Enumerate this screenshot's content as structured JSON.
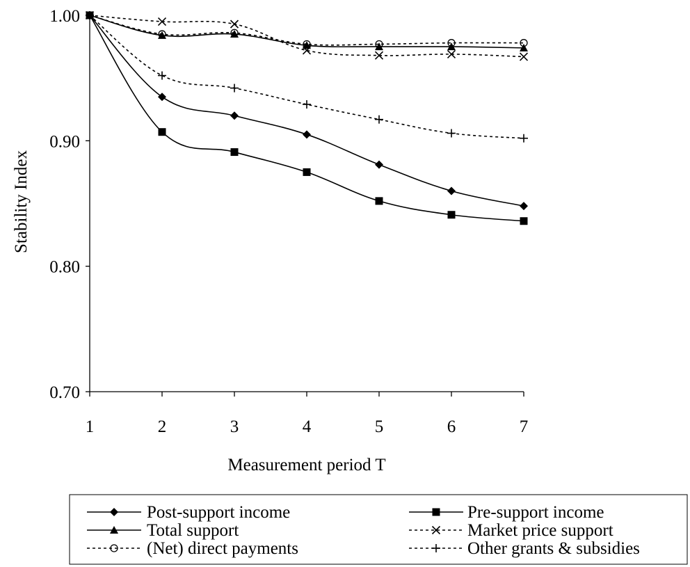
{
  "chart_data": {
    "type": "line",
    "title": "",
    "xlabel": "Measurement period T",
    "ylabel": "Stability Index",
    "x": [
      1,
      2,
      3,
      4,
      5,
      6,
      7
    ],
    "xlim": [
      1,
      7
    ],
    "ylim": [
      0.7,
      1.0
    ],
    "yticks": [
      "0.70",
      "0.80",
      "0.90",
      "1.00"
    ],
    "xticks": [
      "1",
      "2",
      "3",
      "4",
      "5",
      "6",
      "7"
    ],
    "grid": false,
    "legend_position": "bottom",
    "series": [
      {
        "name": "Post-support income",
        "values": [
          1.0,
          0.935,
          0.92,
          0.905,
          0.881,
          0.86,
          0.848
        ],
        "marker": "diamond",
        "dash": "solid",
        "smooth": true
      },
      {
        "name": "Pre-support income",
        "values": [
          1.0,
          0.907,
          0.891,
          0.875,
          0.852,
          0.841,
          0.836
        ],
        "marker": "square",
        "dash": "solid",
        "smooth": true
      },
      {
        "name": "Total support",
        "values": [
          1.0,
          0.984,
          0.985,
          0.976,
          0.975,
          0.975,
          0.974
        ],
        "marker": "triangle",
        "dash": "solid",
        "smooth": true
      },
      {
        "name": "Market price support",
        "values": [
          1.0,
          0.995,
          0.993,
          0.972,
          0.968,
          0.969,
          0.967
        ],
        "marker": "x",
        "dash": "dotted",
        "smooth": true
      },
      {
        "name": "(Net) direct payments",
        "values": [
          1.0,
          0.985,
          0.986,
          0.977,
          0.977,
          0.978,
          0.978
        ],
        "marker": "circle",
        "dash": "dotted",
        "smooth": true
      },
      {
        "name": "Other grants & subsidies",
        "values": [
          1.0,
          0.952,
          0.942,
          0.929,
          0.917,
          0.906,
          0.902
        ],
        "marker": "plus",
        "dash": "dotted",
        "smooth": true
      }
    ]
  }
}
